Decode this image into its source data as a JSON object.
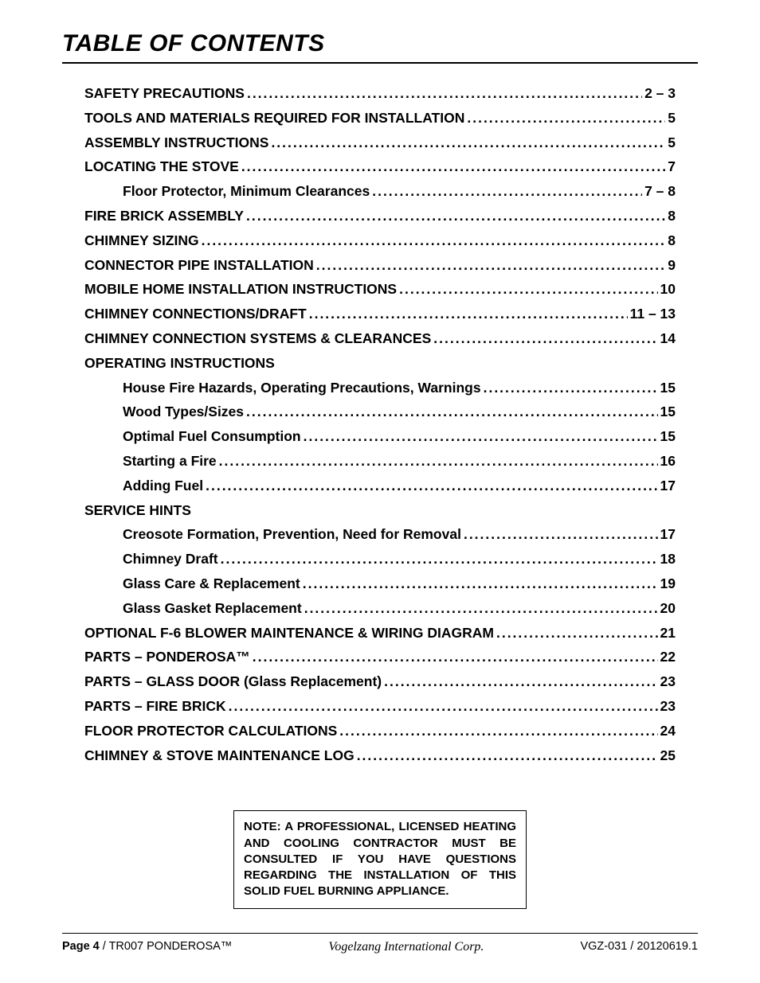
{
  "title": "TABLE OF CONTENTS",
  "toc": [
    {
      "label": "SAFETY PRECAUTIONS",
      "page": "2 – 3",
      "indent": false,
      "dots": true
    },
    {
      "label": "TOOLS AND MATERIALS REQUIRED FOR INSTALLATION",
      "page": "5",
      "indent": false,
      "dots": true
    },
    {
      "label": "ASSEMBLY INSTRUCTIONS",
      "page": "5",
      "indent": false,
      "dots": true
    },
    {
      "label": "LOCATING THE STOVE",
      "page": "7",
      "indent": false,
      "dots": true
    },
    {
      "label": "Floor Protector, Minimum Clearances",
      "page": "7 – 8",
      "indent": true,
      "dots": true
    },
    {
      "label": "FIRE BRICK ASSEMBLY",
      "page": "8",
      "indent": false,
      "dots": true
    },
    {
      "label": "CHIMNEY SIZING",
      "page": "8",
      "indent": false,
      "dots": true
    },
    {
      "label": "CONNECTOR PIPE INSTALLATION",
      "page": "9",
      "indent": false,
      "dots": true
    },
    {
      "label": "MOBILE HOME INSTALLATION INSTRUCTIONS",
      "page": "10",
      "indent": false,
      "dots": true
    },
    {
      "label": "CHIMNEY CONNECTIONS/DRAFT",
      "page": "11 – 13",
      "indent": false,
      "dots": true
    },
    {
      "label": "CHIMNEY CONNECTION SYSTEMS & CLEARANCES",
      "page": "14",
      "indent": false,
      "dots": true
    },
    {
      "label": "OPERATING INSTRUCTIONS",
      "page": "",
      "indent": false,
      "dots": false
    },
    {
      "label": "House Fire Hazards, Operating Precautions, Warnings",
      "page": "15",
      "indent": true,
      "dots": true
    },
    {
      "label": "Wood Types/Sizes",
      "page": "15",
      "indent": true,
      "dots": true
    },
    {
      "label": "Optimal Fuel Consumption",
      "page": "15",
      "indent": true,
      "dots": true
    },
    {
      "label": "Starting a Fire",
      "page": "16",
      "indent": true,
      "dots": true
    },
    {
      "label": "Adding Fuel",
      "page": "17",
      "indent": true,
      "dots": true
    },
    {
      "label": "SERVICE HINTS",
      "page": "",
      "indent": false,
      "dots": false
    },
    {
      "label": "Creosote Formation, Prevention, Need for Removal",
      "page": "17",
      "indent": true,
      "dots": true
    },
    {
      "label": "Chimney Draft",
      "page": "18",
      "indent": true,
      "dots": true
    },
    {
      "label": "Glass Care & Replacement",
      "page": "19",
      "indent": true,
      "dots": true
    },
    {
      "label": "Glass Gasket Replacement",
      "page": "20",
      "indent": true,
      "dots": true
    },
    {
      "label": "OPTIONAL F-6 BLOWER MAINTENANCE & WIRING DIAGRAM",
      "page": "21",
      "indent": false,
      "dots": true
    },
    {
      "label": "PARTS – PONDEROSA™",
      "page": "22",
      "indent": false,
      "dots": true
    },
    {
      "label": "PARTS – GLASS DOOR (Glass Replacement)",
      "page": "23",
      "indent": false,
      "dots": true
    },
    {
      "label": "PARTS – FIRE BRICK",
      "page": "23",
      "indent": false,
      "dots": true
    },
    {
      "label": "FLOOR PROTECTOR CALCULATIONS",
      "page": "24",
      "indent": false,
      "dots": true
    },
    {
      "label": "CHIMNEY & STOVE MAINTENANCE LOG",
      "page": "25",
      "indent": false,
      "dots": true
    }
  ],
  "note": "NOTE: A PROFESSIONAL, LICENSED HEATING AND COOLING CONTRACTOR MUST BE CONSULTED IF YOU HAVE QUESTIONS REGARDING THE INSTALLATION OF THIS SOLID FUEL BURNING APPLIANCE.",
  "footer": {
    "left_bold": "Page 4",
    "left_rest": " / TR007 PONDEROSA™",
    "center": "Vogelzang International Corp.",
    "right": "VGZ-031 / 20120619.1"
  }
}
